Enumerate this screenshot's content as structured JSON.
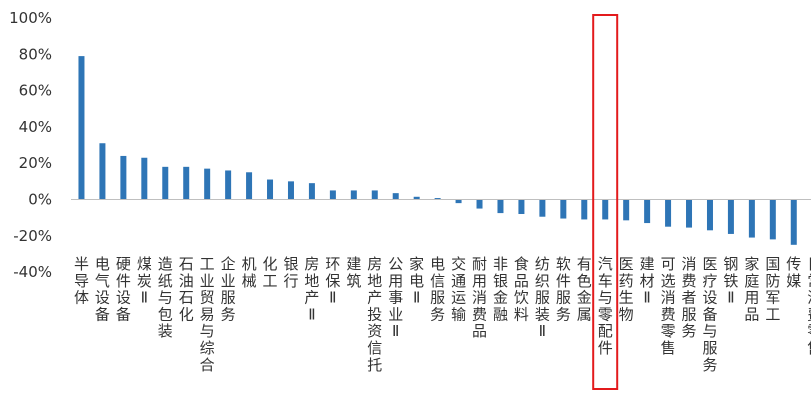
{
  "chart_data": {
    "type": "bar",
    "ylim": [
      -40,
      100
    ],
    "yticks": [
      "100%",
      "80%",
      "60%",
      "40%",
      "20%",
      "0%",
      "-20%",
      "-40%"
    ],
    "ytick_values": [
      100,
      80,
      60,
      40,
      20,
      0,
      -20,
      -40
    ],
    "grid": false,
    "legend": "none",
    "highlighted_category": "汽车与零配件",
    "colors": {
      "bar": "#2e75b6",
      "highlight_box": "#e31a1c",
      "axis": "#bfbfbf",
      "text": "#333333"
    },
    "categories": [
      "半导体",
      "电气设备",
      "硬件设备",
      "煤炭Ⅱ",
      "造纸与包装",
      "石油石化",
      "工业贸易与综合",
      "企业服务",
      "机械",
      "化工",
      "银行",
      "房地产Ⅱ",
      "环保Ⅱ",
      "建筑",
      "房地产投资信托",
      "公用事业Ⅱ",
      "家电Ⅱ",
      "电信服务",
      "交通运输",
      "耐用消费品",
      "非银金融",
      "食品饮料",
      "纺织服装Ⅱ",
      "软件服务",
      "有色金属",
      "汽车与零配件",
      "医药生物",
      "建材Ⅱ",
      "可选消费零售",
      "消费者服务",
      "医疗设备与服务",
      "钢铁Ⅱ",
      "家庭用品",
      "国防军工",
      "传媒",
      "日常消费零售"
    ],
    "values": [
      79,
      31,
      24,
      23,
      18,
      18,
      17,
      16,
      15,
      11,
      10,
      9,
      5,
      5,
      5,
      3.5,
      1.5,
      0.8,
      -2,
      -5,
      -7.5,
      -8,
      -9.5,
      -10.5,
      -11,
      -11,
      -11.5,
      -13,
      -15,
      -15.5,
      -17,
      -19,
      -21,
      -22,
      -25,
      -29
    ]
  }
}
